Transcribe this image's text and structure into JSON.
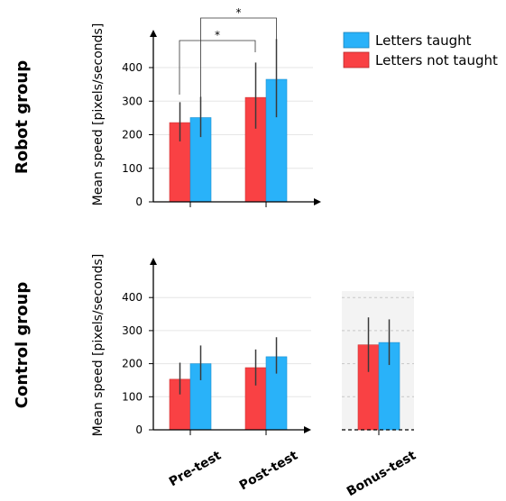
{
  "chart_data": [
    {
      "type": "bar",
      "group_label": "Robot group",
      "ylabel": "Mean speed [pixels/seconds]",
      "yticks": [
        0,
        100,
        200,
        300,
        400
      ],
      "ylim": [
        0,
        490
      ],
      "categories": [
        "Pre-test",
        "Post-test"
      ],
      "series": [
        {
          "name": "Letters not taught",
          "color": "#f94144",
          "values": [
            236,
            311
          ],
          "error_low": [
            180,
            218
          ],
          "error_high": [
            297,
            415
          ]
        },
        {
          "name": "Letters taught",
          "color": "#29b2f9",
          "values": [
            251,
            365
          ],
          "error_low": [
            193,
            252
          ],
          "error_high": [
            313,
            485
          ]
        }
      ],
      "significance": [
        {
          "label": "*",
          "from": "Pre-test / Letters not taught",
          "to": "Post-test / Letters not taught"
        },
        {
          "label": "*",
          "from": "Pre-test / Letters taught",
          "to": "Post-test / Letters taught"
        }
      ],
      "grid": true
    },
    {
      "type": "bar",
      "group_label": "Control group",
      "ylabel": "Mean speed [pixels/seconds]",
      "yticks": [
        0,
        100,
        200,
        300,
        400
      ],
      "ylim": [
        0,
        490
      ],
      "categories": [
        "Pre-test",
        "Post-test",
        "Bonus-test"
      ],
      "series": [
        {
          "name": "Letters not taught",
          "color": "#f94144",
          "values": [
            153,
            188,
            257
          ],
          "error_low": [
            107,
            134,
            175
          ],
          "error_high": [
            203,
            243,
            340
          ]
        },
        {
          "name": "Letters taught",
          "color": "#29b2f9",
          "values": [
            200,
            221,
            264
          ],
          "error_low": [
            150,
            170,
            196
          ],
          "error_high": [
            255,
            280,
            334
          ]
        }
      ],
      "grid": true
    }
  ],
  "legend": {
    "placement": "top-right",
    "items": [
      {
        "label": "Letters taught",
        "color": "#29b2f9"
      },
      {
        "label": "Letters not taught",
        "color": "#f94144"
      }
    ]
  },
  "x_categories": [
    "Pre-test",
    "Post-test",
    "Bonus-test"
  ]
}
